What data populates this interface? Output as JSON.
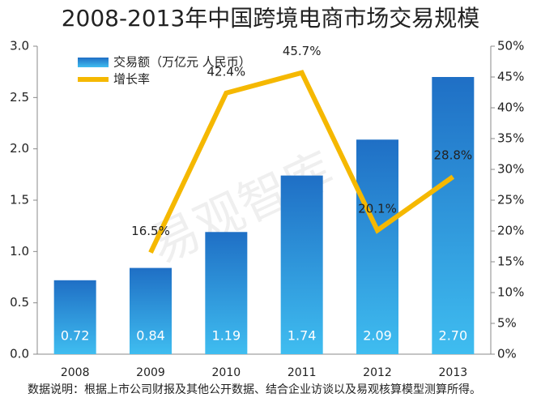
{
  "chart_data": {
    "type": "bar-line",
    "title": "2008-2013年中国跨境电商市场交易规模",
    "categories": [
      "2008",
      "2009",
      "2010",
      "2011",
      "2012",
      "2013"
    ],
    "series": [
      {
        "name": "交易额（万亿元 人民币）",
        "type": "bar",
        "color": "#1f6fc5",
        "values": [
          0.72,
          0.84,
          1.19,
          1.74,
          2.09,
          2.7
        ],
        "value_labels": [
          "0.72",
          "0.84",
          "1.19",
          "1.74",
          "2.09",
          "2.70"
        ]
      },
      {
        "name": "增长率",
        "type": "line",
        "axis": "y2",
        "color": "#f5b800",
        "values": [
          null,
          16.5,
          42.4,
          45.7,
          20.1,
          28.8
        ],
        "value_labels": [
          null,
          "16.5%",
          "42.4%",
          "45.7%",
          "20.1%",
          "28.8%"
        ]
      }
    ],
    "ylim": [
      0,
      3
    ],
    "yticks": [
      {
        "value": 0,
        "label": "0.0"
      },
      0.5,
      {
        "value": 1,
        "label": "1.0"
      },
      1.5,
      {
        "value": 2,
        "label": "2.0"
      },
      2.5,
      {
        "value": 3,
        "label": "3.0"
      }
    ],
    "y2lim": [
      0,
      50
    ],
    "y2ticks": [
      {
        "value": 0,
        "label": "0%"
      },
      {
        "value": 5,
        "label": "5%"
      },
      {
        "value": 10,
        "label": "10%"
      },
      {
        "value": 15,
        "label": "15%"
      },
      {
        "value": 20,
        "label": "20%"
      },
      {
        "value": 25,
        "label": "25%"
      },
      {
        "value": 30,
        "label": "30%"
      },
      {
        "value": 35,
        "label": "35%"
      },
      {
        "value": 40,
        "label": "40%"
      },
      {
        "value": 45,
        "label": "45%"
      },
      {
        "value": 50,
        "label": "50%"
      }
    ],
    "grid": false,
    "watermark": "易观智库",
    "note": "数据说明：根据上市公司财报及其他公开数据、结合企业访谈以及易观核算模型测算所得。"
  }
}
